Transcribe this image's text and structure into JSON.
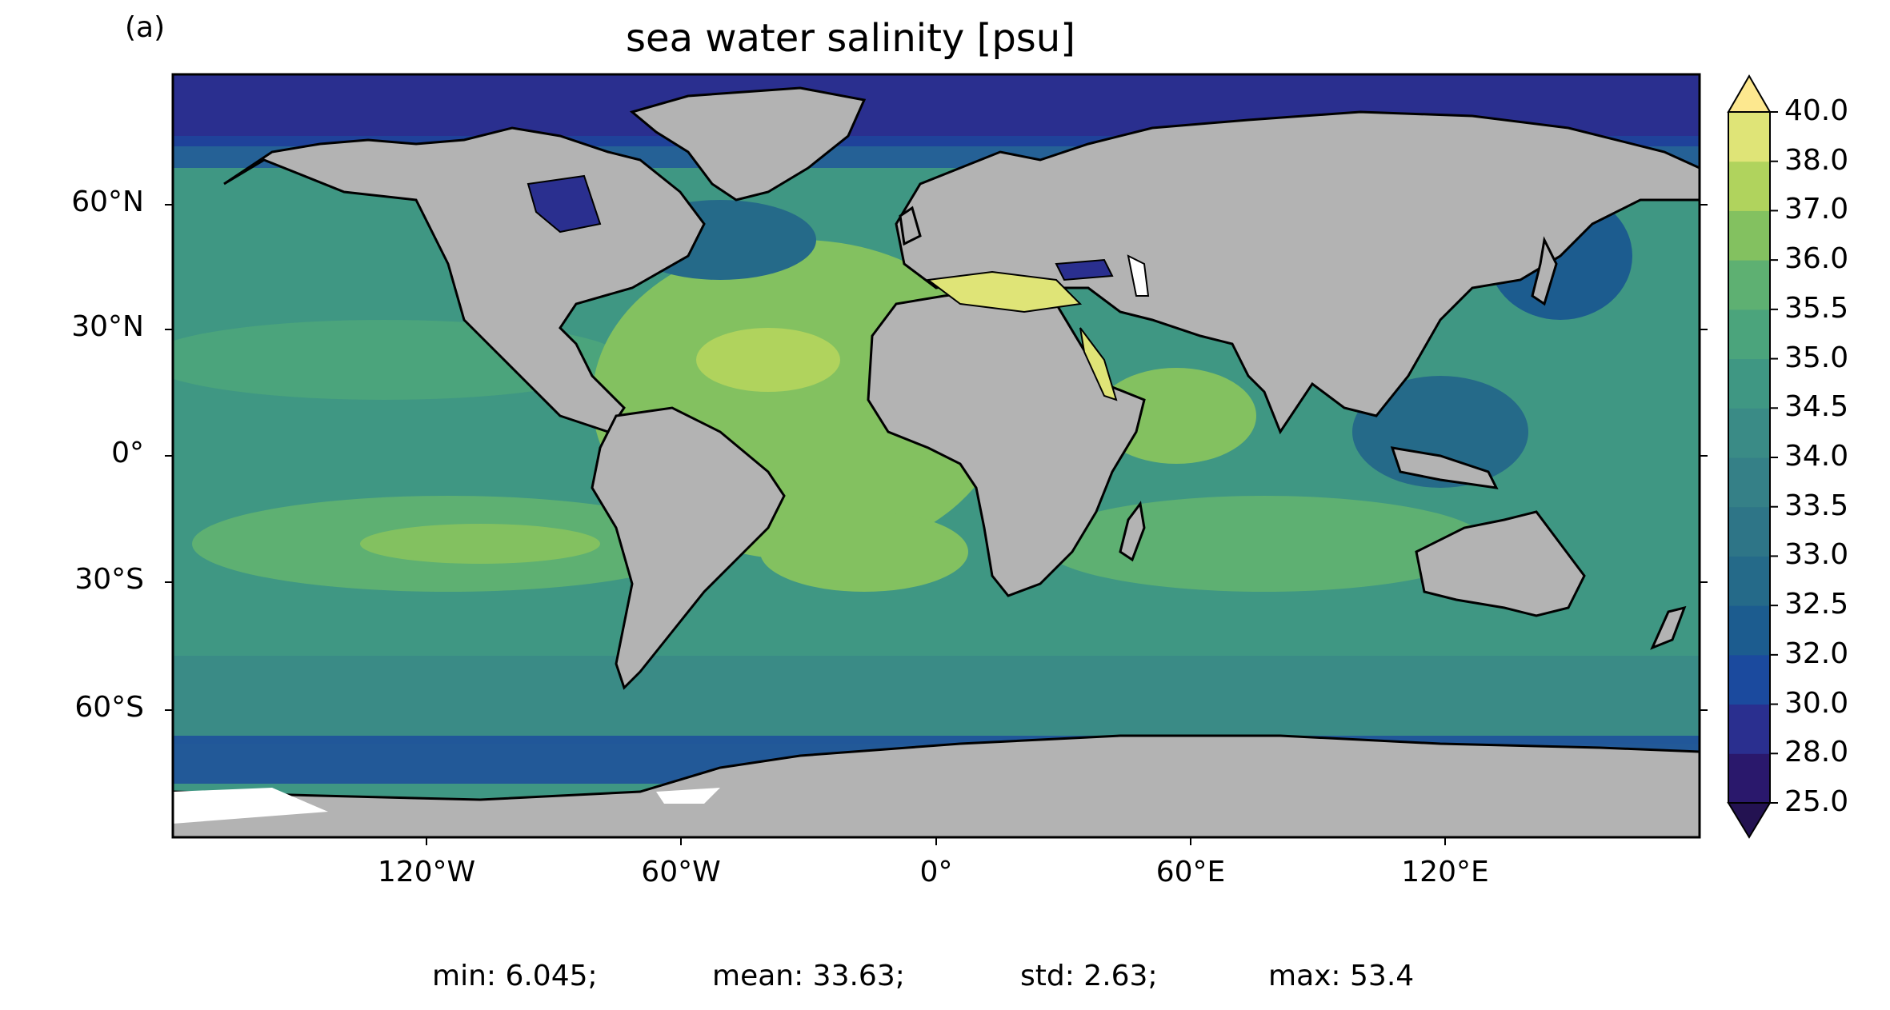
{
  "panel_label": "(a)",
  "title": "sea water salinity [psu]",
  "map": {
    "projection": "PlateCarree",
    "land_color": "#b3b3b3",
    "coastline_color": "#000000",
    "missing_color": "#ffffff",
    "lat_ticks": [
      "60°N",
      "30°N",
      "0°",
      "30°S",
      "60°S"
    ],
    "lon_ticks": [
      "120°W",
      "60°W",
      "0°",
      "60°E",
      "120°E"
    ]
  },
  "colorbar": {
    "colormap": "haline",
    "extend": "both",
    "levels": [
      "25.0",
      "28.0",
      "30.0",
      "32.0",
      "32.5",
      "33.0",
      "33.5",
      "34.0",
      "34.5",
      "35.0",
      "35.5",
      "36.0",
      "37.0",
      "38.0",
      "40.0"
    ],
    "colors": [
      "#2a186c",
      "#2a2f8f",
      "#1b4a9e",
      "#1c5c8f",
      "#256a89",
      "#2e7587",
      "#358087",
      "#3a8b86",
      "#3f9783",
      "#4ba47c",
      "#5eb072",
      "#83c160",
      "#b0d35d",
      "#dfe477"
    ],
    "under_color": "#231251",
    "over_color": "#fde88f"
  },
  "stats": {
    "min": "min: 6.045;",
    "mean": "mean: 33.63;",
    "std": "std: 2.63;",
    "max": "max: 53.4"
  }
}
